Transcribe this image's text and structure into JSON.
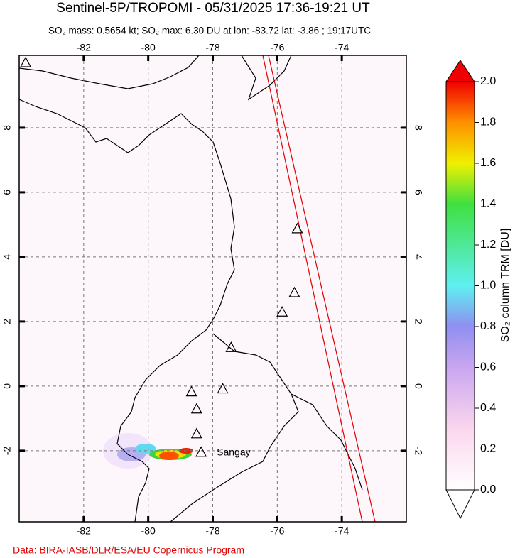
{
  "title": "Sentinel-5P/TROPOMI - 05/31/2025 17:36-19:21 UT",
  "subtitle": "SO₂ mass: 0.5654 kt; SO₂ max: 6.30 DU at lon: -83.72 lat: -3.86 ; 19:17UTC",
  "map": {
    "xlim": [
      -84,
      -72
    ],
    "ylim": [
      -4.2,
      10.24
    ],
    "xticks": [
      -82,
      -80,
      -78,
      -76,
      -74
    ],
    "yticks": [
      -2,
      0,
      2,
      4,
      6,
      8
    ],
    "volcanoes": [
      {
        "lon": -83.8,
        "lat": 10.02
      },
      {
        "lon": -75.38,
        "lat": 4.88
      },
      {
        "lon": -75.47,
        "lat": 2.9
      },
      {
        "lon": -75.85,
        "lat": 2.3
      },
      {
        "lon": -77.43,
        "lat": 1.2
      },
      {
        "lon": -78.66,
        "lat": -0.17
      },
      {
        "lon": -77.69,
        "lat": -0.08
      },
      {
        "lon": -78.5,
        "lat": -0.7
      },
      {
        "lon": -78.5,
        "lat": -1.47
      },
      {
        "lon": -78.36,
        "lat": -2.04,
        "name": "Sangay"
      }
    ]
  },
  "colorbar": {
    "label": "SO₂ column TRM [DU]",
    "lim": [
      0,
      2
    ],
    "ticks": [
      {
        "value": 0,
        "label": "0.0"
      },
      {
        "value": 0.2,
        "label": "0.2"
      },
      {
        "value": 0.4,
        "label": "0.4"
      },
      {
        "value": 0.6,
        "label": "0.6"
      },
      {
        "value": 0.8,
        "label": "0.8"
      },
      {
        "value": 1,
        "label": "1.0"
      },
      {
        "value": 1.2,
        "label": "1.2"
      },
      {
        "value": 1.4,
        "label": "1.4"
      },
      {
        "value": 1.6,
        "label": "1.6"
      },
      {
        "value": 1.8,
        "label": "1.8"
      },
      {
        "value": 2,
        "label": "2.0"
      }
    ]
  },
  "credit": "Data: BIRA-IASB/DLR/ESA/EU Copernicus Program"
}
